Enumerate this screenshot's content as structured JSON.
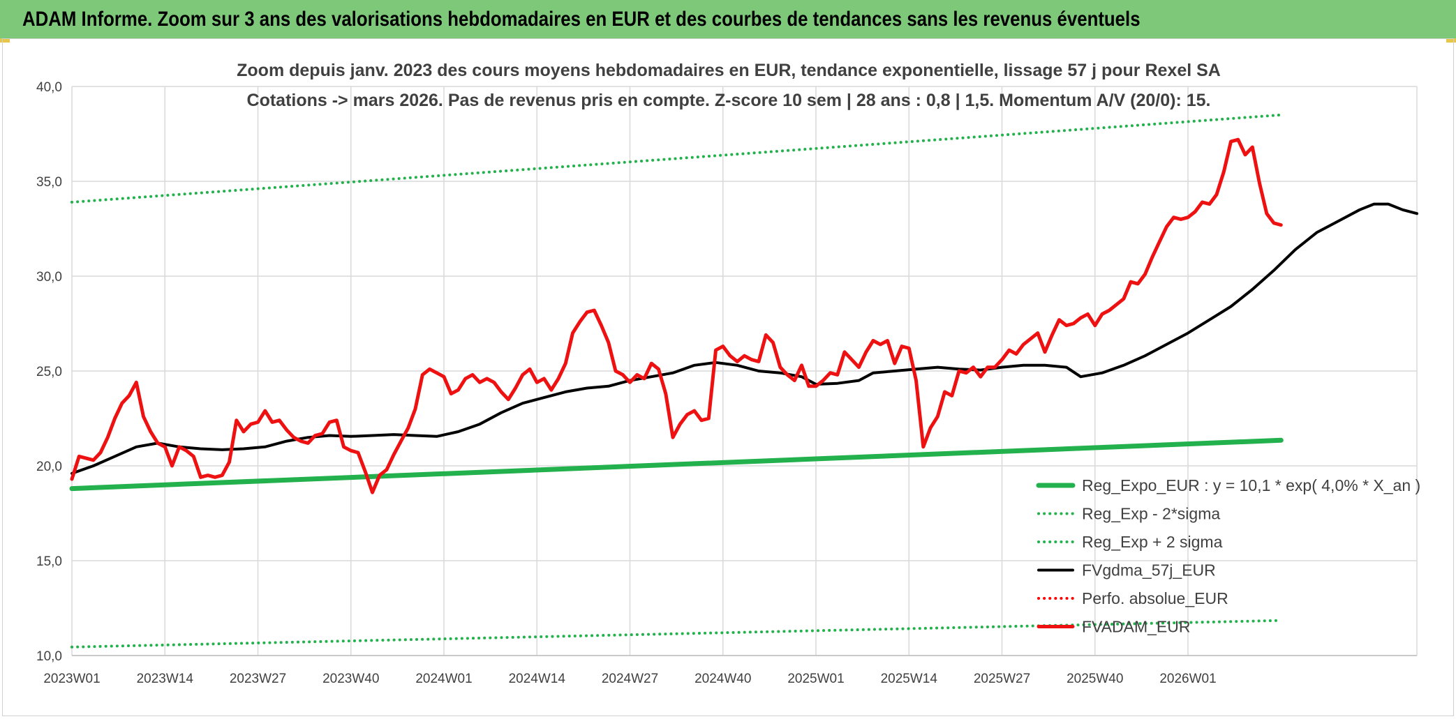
{
  "banner": {
    "title": "ADAM Informe. Zoom sur 3 ans des valorisations hebdomadaires en EUR et des courbes de tendances sans les revenus éventuels"
  },
  "chart_data": {
    "type": "line",
    "title": "Zoom depuis janv. 2023 des cours moyens hebdomadaires en EUR, tendance exponentielle, lissage 57 j pour Rexel SA",
    "subtitle": "Cotations -> mars 2026. Pas de revenus pris en compte. Z-score 10 sem | 28 ans : 0,8 | 1,5. Momentum A/V (20/0): 15.",
    "ylim": [
      10,
      40
    ],
    "yticks": [
      "10,0",
      "15,0",
      "20,0",
      "25,0",
      "30,0",
      "35,0",
      "40,0"
    ],
    "xticks": [
      "2023W01",
      "2023W14",
      "2023W27",
      "2023W40",
      "2024W01",
      "2024W14",
      "2024W27",
      "2024W40",
      "2025W01",
      "2025W14",
      "2025W27",
      "2025W40",
      "2026W01"
    ],
    "grid": true,
    "legend_position": "bottom-right",
    "series": [
      {
        "name": "Reg_Expo_EUR : y = 10,1 * exp( 4,0% *  X_an )",
        "color": "#22b14c",
        "style": "thick",
        "points": [
          [
            0,
            18.8
          ],
          [
            169,
            21.35
          ]
        ]
      },
      {
        "name": "Reg_Exp - 2*sigma",
        "color": "#22b14c",
        "style": "dotted",
        "points": [
          [
            0,
            10.45
          ],
          [
            169,
            11.85
          ]
        ]
      },
      {
        "name": "Reg_Exp + 2 sigma",
        "color": "#22b14c",
        "style": "dotted",
        "points": [
          [
            0,
            33.9
          ],
          [
            169,
            38.5
          ]
        ]
      },
      {
        "name": "FVgdma_57j_EUR",
        "color": "#000000",
        "style": "solid",
        "points": [
          [
            0,
            19.6
          ],
          [
            3,
            20.0
          ],
          [
            6,
            20.5
          ],
          [
            9,
            21.0
          ],
          [
            12,
            21.2
          ],
          [
            15,
            21.0
          ],
          [
            18,
            20.9
          ],
          [
            21,
            20.85
          ],
          [
            24,
            20.9
          ],
          [
            27,
            21.0
          ],
          [
            30,
            21.3
          ],
          [
            33,
            21.5
          ],
          [
            36,
            21.6
          ],
          [
            39,
            21.55
          ],
          [
            42,
            21.6
          ],
          [
            45,
            21.65
          ],
          [
            48,
            21.6
          ],
          [
            51,
            21.55
          ],
          [
            54,
            21.8
          ],
          [
            57,
            22.2
          ],
          [
            60,
            22.8
          ],
          [
            63,
            23.3
          ],
          [
            66,
            23.6
          ],
          [
            69,
            23.9
          ],
          [
            72,
            24.1
          ],
          [
            75,
            24.2
          ],
          [
            78,
            24.5
          ],
          [
            81,
            24.7
          ],
          [
            84,
            24.9
          ],
          [
            87,
            25.3
          ],
          [
            90,
            25.45
          ],
          [
            93,
            25.3
          ],
          [
            96,
            25.0
          ],
          [
            99,
            24.9
          ],
          [
            102,
            24.7
          ],
          [
            104,
            24.3
          ],
          [
            107,
            24.35
          ],
          [
            110,
            24.5
          ],
          [
            112,
            24.9
          ],
          [
            115,
            25.0
          ],
          [
            118,
            25.1
          ],
          [
            121,
            25.2
          ],
          [
            124,
            25.1
          ],
          [
            127,
            25.05
          ],
          [
            130,
            25.2
          ],
          [
            133,
            25.3
          ],
          [
            136,
            25.3
          ],
          [
            139,
            25.2
          ],
          [
            141,
            24.7
          ],
          [
            144,
            24.9
          ],
          [
            147,
            25.3
          ],
          [
            150,
            25.8
          ],
          [
            153,
            26.4
          ],
          [
            156,
            27.0
          ],
          [
            159,
            27.7
          ],
          [
            162,
            28.4
          ],
          [
            165,
            29.3
          ],
          [
            168,
            30.3
          ],
          [
            171,
            31.4
          ],
          [
            174,
            32.3
          ],
          [
            177,
            32.9
          ],
          [
            180,
            33.5
          ],
          [
            182,
            33.8
          ],
          [
            184,
            33.8
          ],
          [
            186,
            33.5
          ],
          [
            188,
            33.3
          ]
        ]
      },
      {
        "name": "Perfo. absolue_EUR",
        "color": "#ff0000",
        "style": "dotted",
        "points": []
      },
      {
        "name": "FVADAM_EUR",
        "color": "#ee1111",
        "style": "thick",
        "points": [
          [
            0,
            19.3
          ],
          [
            1,
            20.5
          ],
          [
            3,
            20.3
          ],
          [
            4,
            20.7
          ],
          [
            5,
            21.5
          ],
          [
            6,
            22.5
          ],
          [
            7,
            23.3
          ],
          [
            8,
            23.7
          ],
          [
            9,
            24.4
          ],
          [
            10,
            22.6
          ],
          [
            11,
            21.8
          ],
          [
            12,
            21.2
          ],
          [
            13,
            21.0
          ],
          [
            14,
            20.0
          ],
          [
            15,
            21.0
          ],
          [
            16,
            20.8
          ],
          [
            17,
            20.5
          ],
          [
            18,
            19.4
          ],
          [
            19,
            19.5
          ],
          [
            20,
            19.4
          ],
          [
            21,
            19.5
          ],
          [
            22,
            20.2
          ],
          [
            23,
            22.4
          ],
          [
            24,
            21.8
          ],
          [
            25,
            22.2
          ],
          [
            26,
            22.3
          ],
          [
            27,
            22.9
          ],
          [
            28,
            22.3
          ],
          [
            29,
            22.4
          ],
          [
            30,
            21.9
          ],
          [
            31,
            21.5
          ],
          [
            32,
            21.3
          ],
          [
            33,
            21.2
          ],
          [
            34,
            21.6
          ],
          [
            35,
            21.7
          ],
          [
            36,
            22.3
          ],
          [
            37,
            22.4
          ],
          [
            38,
            21.0
          ],
          [
            39,
            20.8
          ],
          [
            40,
            20.7
          ],
          [
            41,
            19.7
          ],
          [
            42,
            18.6
          ],
          [
            43,
            19.5
          ],
          [
            44,
            19.8
          ],
          [
            45,
            20.6
          ],
          [
            46,
            21.3
          ],
          [
            47,
            22.0
          ],
          [
            48,
            23.0
          ],
          [
            49,
            24.8
          ],
          [
            50,
            25.1
          ],
          [
            51,
            24.9
          ],
          [
            52,
            24.7
          ],
          [
            53,
            23.8
          ],
          [
            54,
            24.0
          ],
          [
            55,
            24.6
          ],
          [
            56,
            24.8
          ],
          [
            57,
            24.4
          ],
          [
            58,
            24.6
          ],
          [
            59,
            24.4
          ],
          [
            60,
            23.9
          ],
          [
            61,
            23.5
          ],
          [
            62,
            24.1
          ],
          [
            63,
            24.8
          ],
          [
            64,
            25.1
          ],
          [
            65,
            24.4
          ],
          [
            66,
            24.6
          ],
          [
            67,
            24.0
          ],
          [
            68,
            24.6
          ],
          [
            69,
            25.4
          ],
          [
            70,
            27.0
          ],
          [
            71,
            27.6
          ],
          [
            72,
            28.1
          ],
          [
            73,
            28.2
          ],
          [
            74,
            27.4
          ],
          [
            75,
            26.5
          ],
          [
            76,
            25.0
          ],
          [
            77,
            24.8
          ],
          [
            78,
            24.4
          ],
          [
            79,
            24.8
          ],
          [
            80,
            24.6
          ],
          [
            81,
            25.4
          ],
          [
            82,
            25.1
          ],
          [
            83,
            23.8
          ],
          [
            84,
            21.5
          ],
          [
            85,
            22.2
          ],
          [
            86,
            22.7
          ],
          [
            87,
            22.9
          ],
          [
            88,
            22.4
          ],
          [
            89,
            22.5
          ],
          [
            90,
            26.1
          ],
          [
            91,
            26.3
          ],
          [
            92,
            25.8
          ],
          [
            93,
            25.5
          ],
          [
            94,
            25.8
          ],
          [
            95,
            25.6
          ],
          [
            96,
            25.5
          ],
          [
            97,
            26.9
          ],
          [
            98,
            26.5
          ],
          [
            99,
            25.2
          ],
          [
            100,
            24.8
          ],
          [
            101,
            24.5
          ],
          [
            102,
            25.3
          ],
          [
            103,
            24.2
          ],
          [
            104,
            24.2
          ],
          [
            105,
            24.5
          ],
          [
            106,
            24.9
          ],
          [
            107,
            24.8
          ],
          [
            108,
            26.0
          ],
          [
            109,
            25.6
          ],
          [
            110,
            25.2
          ],
          [
            111,
            26.0
          ],
          [
            112,
            26.6
          ],
          [
            113,
            26.4
          ],
          [
            114,
            26.6
          ],
          [
            115,
            25.4
          ],
          [
            116,
            26.3
          ],
          [
            117,
            26.2
          ],
          [
            118,
            24.5
          ],
          [
            119,
            21.0
          ],
          [
            120,
            22.0
          ],
          [
            121,
            22.6
          ],
          [
            122,
            23.9
          ],
          [
            123,
            23.7
          ],
          [
            124,
            25.0
          ],
          [
            125,
            24.9
          ],
          [
            126,
            25.2
          ],
          [
            127,
            24.7
          ],
          [
            128,
            25.2
          ],
          [
            129,
            25.2
          ],
          [
            130,
            25.6
          ],
          [
            131,
            26.1
          ],
          [
            132,
            25.9
          ],
          [
            133,
            26.4
          ],
          [
            134,
            26.7
          ],
          [
            135,
            27.0
          ],
          [
            136,
            26.0
          ],
          [
            137,
            26.9
          ],
          [
            138,
            27.7
          ],
          [
            139,
            27.4
          ],
          [
            140,
            27.5
          ],
          [
            141,
            27.8
          ],
          [
            142,
            28.0
          ],
          [
            143,
            27.4
          ],
          [
            144,
            28.0
          ],
          [
            145,
            28.2
          ],
          [
            146,
            28.5
          ],
          [
            147,
            28.8
          ],
          [
            148,
            29.7
          ],
          [
            149,
            29.6
          ],
          [
            150,
            30.1
          ],
          [
            151,
            31.0
          ],
          [
            152,
            31.8
          ],
          [
            153,
            32.6
          ],
          [
            154,
            33.1
          ],
          [
            155,
            33.0
          ],
          [
            156,
            33.1
          ],
          [
            157,
            33.4
          ],
          [
            158,
            33.9
          ],
          [
            159,
            33.8
          ],
          [
            160,
            34.3
          ],
          [
            161,
            35.5
          ],
          [
            162,
            37.1
          ],
          [
            163,
            37.2
          ],
          [
            164,
            36.4
          ],
          [
            165,
            36.8
          ],
          [
            166,
            34.9
          ],
          [
            167,
            33.3
          ],
          [
            168,
            32.8
          ],
          [
            169,
            32.7
          ]
        ]
      }
    ]
  }
}
